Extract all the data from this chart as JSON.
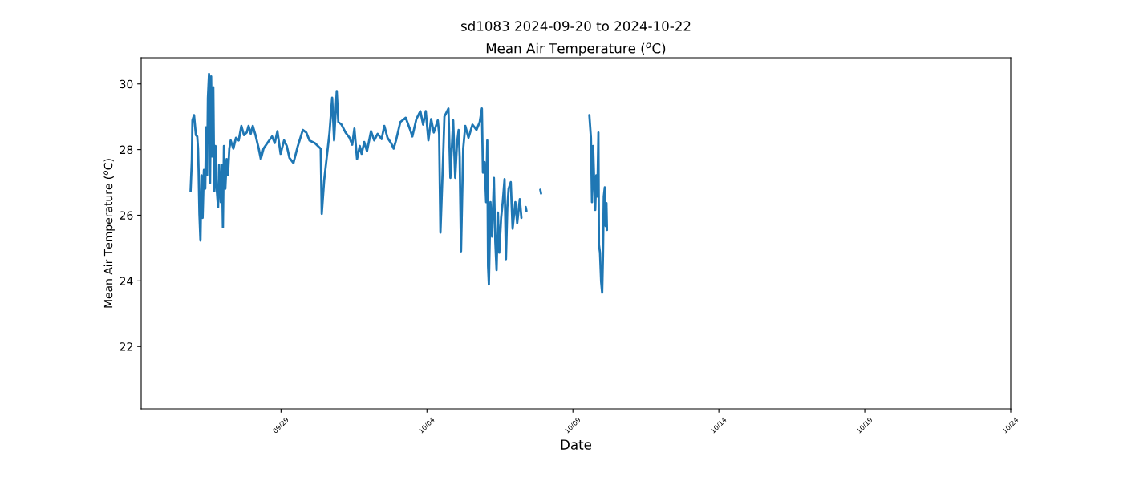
{
  "chart_data": {
    "type": "line",
    "title": "sd1083 2024-09-20 to 2024-10-22",
    "subtitle": "Mean Air Temperature ($^{o}$C)",
    "xlabel": "Date",
    "ylabel": "Mean Air Temperature ($^{o}$C)",
    "x": [
      "2024-09-25T21:37",
      "2024-09-25T22:41",
      "2024-09-25T23:08",
      "2024-09-26T00:28",
      "2024-09-26T01:59",
      "2024-09-26T03:06",
      "2024-09-26T03:45",
      "2024-09-26T04:13",
      "2024-09-26T04:53",
      "2024-09-26T05:44",
      "2024-09-26T06:36",
      "2024-09-26T07:31",
      "2024-09-26T08:34",
      "2024-09-26T09:41",
      "2024-09-26T10:21",
      "2024-09-26T11:13",
      "2024-09-26T11:52",
      "2024-09-26T12:47",
      "2024-09-26T13:39",
      "2024-09-26T14:30",
      "2024-09-26T15:26",
      "2024-09-26T16:17",
      "2024-09-26T17:08",
      "2024-09-26T18:04",
      "2024-09-26T18:55",
      "2024-09-26T20:14",
      "2024-09-26T21:06",
      "2024-09-26T22:25",
      "2024-09-26T23:20",
      "2024-09-27T00:12",
      "2024-09-27T01:03",
      "2024-09-27T02:11",
      "2024-09-27T03:18",
      "2024-09-27T04:21",
      "2024-09-27T05:28",
      "2024-09-27T06:36",
      "2024-09-27T08:46",
      "2024-09-27T10:57",
      "2024-09-27T13:11",
      "2024-09-27T15:22",
      "2024-09-27T17:32",
      "2024-09-27T19:47",
      "2024-09-27T21:18",
      "2024-09-27T23:05",
      "2024-09-28T00:47",
      "2024-09-28T03:02",
      "2024-09-28T05:40",
      "2024-09-28T07:23",
      "2024-09-28T09:38",
      "2024-09-28T13:19",
      "2024-09-28T16:37",
      "2024-09-28T18:51",
      "2024-09-28T21:02",
      "2024-09-28T23:40",
      "2024-09-29T02:30",
      "2024-09-29T04:45",
      "2024-09-29T06:55",
      "2024-09-29T10:13",
      "2024-09-29T13:31",
      "2024-09-29T17:56",
      "2024-09-29T20:46",
      "2024-09-29T23:24",
      "2024-09-30T03:49",
      "2024-09-30T08:38",
      "2024-09-30T09:30",
      "2024-09-30T11:28",
      "2024-09-30T15:53",
      "2024-09-30T18:04",
      "2024-09-30T19:39",
      "2024-09-30T21:49",
      "2024-09-30T23:08",
      "2024-10-01T01:47",
      "2024-10-01T05:05",
      "2024-10-01T08:22",
      "2024-10-01T10:33",
      "2024-10-01T12:20",
      "2024-10-01T14:30",
      "2024-10-01T16:45",
      "2024-10-01T18:16",
      "2024-10-01T20:26",
      "2024-10-01T22:41",
      "2024-10-02T01:59",
      "2024-10-02T04:37",
      "2024-10-02T07:27",
      "2024-10-02T10:45",
      "2024-10-02T12:55",
      "2024-10-02T15:34",
      "2024-10-02T18:28",
      "2024-10-02T20:38",
      "2024-10-02T22:49",
      "2024-10-03T02:07",
      "2024-10-03T06:32",
      "2024-10-03T09:49",
      "2024-10-03T12:00",
      "2024-10-03T15:18",
      "2024-10-03T18:35",
      "2024-10-03T20:50",
      "2024-10-03T23:01",
      "2024-10-04T01:11",
      "2024-10-04T03:26",
      "2024-10-04T05:36",
      "2024-10-04T08:54",
      "2024-10-04T10:01",
      "2024-10-04T11:05",
      "2024-10-04T13:19",
      "2024-10-04T14:22",
      "2024-10-04T17:40",
      "2024-10-04T19:15",
      "2024-10-04T21:34",
      "2024-10-04T23:13",
      "2024-10-05T00:44",
      "2024-10-05T02:03",
      "2024-10-05T02:54",
      "2024-10-05T04:01",
      "2024-10-05T05:48",
      "2024-10-05T07:31",
      "2024-10-05T10:09",
      "2024-10-05T13:27",
      "2024-10-05T16:45",
      "2024-10-05T19:23",
      "2024-10-05T21:10",
      "2024-10-05T22:01",
      "2024-10-05T23:20",
      "2024-10-06T00:40",
      "2024-10-06T01:35",
      "2024-10-06T02:14",
      "2024-10-06T02:54",
      "2024-10-06T04:13",
      "2024-10-06T05:32",
      "2024-10-06T07:03",
      "2024-10-06T08:11",
      "2024-10-06T09:14",
      "2024-10-06T10:21",
      "2024-10-06T11:28",
      "2024-10-06T12:59",
      "2024-10-06T14:18",
      "2024-10-06T15:49",
      "2024-10-06T16:57",
      "2024-10-06T18:04",
      "2024-10-06T19:07",
      "2024-10-06T20:54",
      "2024-10-06T22:25",
      "2024-10-07T00:40",
      "2024-10-07T02:11",
      "2024-10-07T04:21",
      "2024-10-07T05:40",
      "2024-10-07T06:30",
      "2024-10-07T09:10",
      "2024-10-07T09:50",
      "2024-10-07T12:00",
      "2024-10-07T21:10",
      "2024-10-07T21:50",
      "2024-10-08T06:00",
      "2024-10-09T13:31",
      "2024-10-09T14:50",
      "2024-10-09T15:41",
      "2024-10-09T16:37",
      "2024-10-09T17:28",
      "2024-10-09T18:20",
      "2024-10-09T19:15",
      "2024-10-09T20:07",
      "2024-10-09T20:58",
      "2024-10-09T21:26",
      "2024-10-09T22:17",
      "2024-10-09T23:13",
      "2024-10-10T00:04",
      "2024-10-10T00:44",
      "2024-10-10T01:23",
      "2024-10-10T02:14",
      "2024-10-10T02:54",
      "2024-10-10T03:34",
      "2024-10-10T04:01"
    ],
    "series": [
      {
        "color": "#1f77b4",
        "values": [
          26.73,
          27.71,
          28.89,
          29.05,
          28.44,
          28.4,
          28.03,
          27.38,
          26.04,
          25.23,
          27.22,
          25.92,
          27.38,
          26.81,
          28.68,
          27.22,
          29.58,
          30.31,
          26.98,
          30.23,
          27.79,
          29.9,
          26.73,
          28.11,
          26.89,
          26.24,
          27.54,
          26.4,
          27.54,
          25.63,
          28.11,
          26.81,
          27.71,
          27.22,
          28.03,
          28.28,
          28.03,
          28.36,
          28.28,
          28.72,
          28.44,
          28.52,
          28.72,
          28.48,
          28.72,
          28.44,
          28.03,
          27.71,
          28.03,
          28.23,
          28.4,
          28.2,
          28.56,
          27.87,
          28.28,
          28.11,
          27.75,
          27.59,
          28.07,
          28.6,
          28.52,
          28.28,
          28.2,
          28.03,
          26.04,
          27.06,
          28.52,
          29.58,
          28.28,
          29.78,
          28.84,
          28.76,
          28.52,
          28.36,
          28.15,
          28.64,
          27.71,
          28.11,
          27.87,
          28.23,
          27.95,
          28.56,
          28.28,
          28.48,
          28.32,
          28.72,
          28.36,
          28.2,
          28.03,
          28.32,
          28.84,
          28.97,
          28.64,
          28.4,
          28.93,
          29.17,
          28.76,
          29.17,
          28.28,
          28.93,
          28.52,
          28.89,
          28.48,
          25.47,
          27.79,
          29.01,
          29.25,
          27.14,
          28.89,
          27.14,
          28.2,
          28.6,
          27.79,
          24.9,
          28.03,
          28.72,
          28.36,
          28.76,
          28.6,
          28.84,
          29.25,
          27.3,
          27.62,
          26.4,
          28.28,
          24.45,
          23.89,
          26.4,
          25.35,
          27.14,
          25.19,
          24.33,
          26.08,
          24.86,
          25.92,
          26.4,
          27.1,
          24.66,
          26.24,
          26.81,
          27.01,
          25.59,
          26.4,
          25.76,
          26.49,
          25.92,
          null,
          26.25,
          26.13,
          null,
          26.78,
          26.66,
          null,
          29.05,
          28.36,
          26.4,
          28.11,
          27.06,
          26.16,
          27.22,
          26.57,
          28.52,
          25.1,
          24.86,
          23.97,
          23.64,
          24.78,
          26.57,
          26.85,
          25.67,
          26.37,
          25.55
        ]
      }
    ],
    "xlim": [
      "2024-09-24T05:00",
      "2024-10-24T00:00"
    ],
    "ylim": [
      20.1,
      30.8
    ],
    "xticks": [
      {
        "value": "2024-09-29",
        "label": "09/29"
      },
      {
        "value": "2024-10-04",
        "label": "10/04"
      },
      {
        "value": "2024-10-09",
        "label": "10/09"
      },
      {
        "value": "2024-10-14",
        "label": "10/14"
      },
      {
        "value": "2024-10-19",
        "label": "10/19"
      },
      {
        "value": "2024-10-24",
        "label": "10/24"
      }
    ],
    "yticks": [
      22,
      24,
      26,
      28,
      30
    ]
  }
}
